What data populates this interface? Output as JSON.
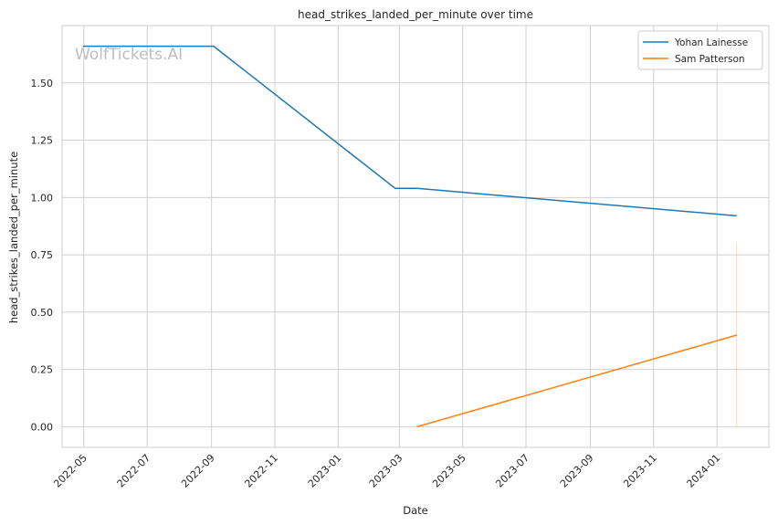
{
  "chart_data": {
    "type": "line",
    "title": "head_strikes_landed_per_minute over time",
    "xlabel": "Date",
    "ylabel": "head_strikes_landed_per_minute",
    "x_type": "date",
    "xlim": [
      "2022-04-10",
      "2024-02-20"
    ],
    "ylim": [
      -0.09,
      1.75
    ],
    "x_ticks": [
      "2022-05-01",
      "2022-07-01",
      "2022-09-01",
      "2022-11-01",
      "2023-01-01",
      "2023-03-01",
      "2023-05-01",
      "2023-07-01",
      "2023-09-01",
      "2023-11-01",
      "2024-01-01"
    ],
    "x_tick_labels": [
      "2022-05",
      "2022-07",
      "2022-09",
      "2022-11",
      "2023-01",
      "2023-03",
      "2023-05",
      "2023-07",
      "2023-09",
      "2023-11",
      "2024-01"
    ],
    "y_ticks": [
      0.0,
      0.25,
      0.5,
      0.75,
      1.0,
      1.25,
      1.5
    ],
    "y_tick_labels": [
      "0.00",
      "0.25",
      "0.50",
      "0.75",
      "1.00",
      "1.25",
      "1.50"
    ],
    "grid": true,
    "legend_position": "top-right",
    "series": [
      {
        "name": "Yohan Lainesse",
        "color": "#1f77b4",
        "points": [
          {
            "x": "2022-04-30",
            "y": 1.66
          },
          {
            "x": "2022-09-03",
            "y": 1.66
          },
          {
            "x": "2023-02-25",
            "y": 1.04
          },
          {
            "x": "2023-03-18",
            "y": 1.04
          },
          {
            "x": "2024-01-20",
            "y": 0.92
          }
        ]
      },
      {
        "name": "Sam Patterson",
        "color": "#ff7f0e",
        "points": [
          {
            "x": "2023-03-18",
            "y": 0.0
          },
          {
            "x": "2024-01-20",
            "y": 0.4
          }
        ],
        "band": {
          "x": "2024-01-20",
          "low": 0.0,
          "high": 0.8
        }
      }
    ]
  },
  "watermark": "WolfTickets.AI"
}
